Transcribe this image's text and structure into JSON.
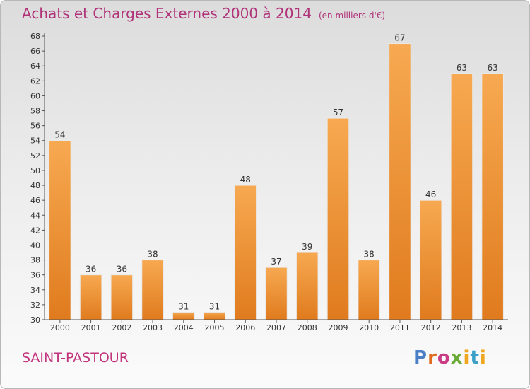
{
  "header": {
    "title": "Achats et Charges Externes 2000 à 2014",
    "unit": "(en milliers d'€)"
  },
  "commune": "SAINT-PASTOUR",
  "logo": {
    "text": "Proxiti"
  },
  "colors": {
    "bar_light": "#f7a951",
    "bar_dark": "#e07b1e",
    "title": "#b0337a"
  },
  "chart_data": {
    "type": "bar",
    "title": "Achats et Charges Externes 2000 à 2014",
    "unit": "(en milliers d'€)",
    "categories": [
      "2000",
      "2001",
      "2002",
      "2003",
      "2004",
      "2005",
      "2006",
      "2007",
      "2008",
      "2009",
      "2010",
      "2011",
      "2012",
      "2013",
      "2014"
    ],
    "values": [
      54,
      36,
      36,
      38,
      31,
      31,
      48,
      37,
      39,
      57,
      38,
      67,
      46,
      63,
      63
    ],
    "ylim": [
      30,
      68
    ],
    "ytick_step": 2,
    "grid": false,
    "legend": "none"
  }
}
